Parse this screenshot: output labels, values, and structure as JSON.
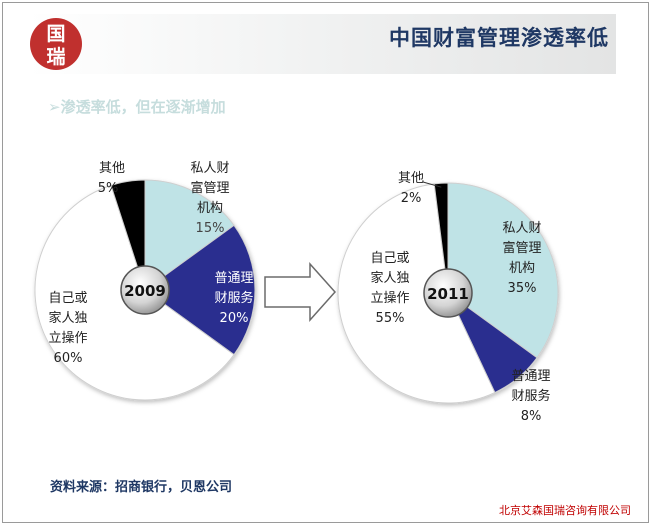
{
  "header": {
    "title": "中国财富管理渗透率低",
    "logo_text": "国瑞"
  },
  "bullet": {
    "marker": "➢",
    "text": "渗透率低，但在逐渐增加"
  },
  "chart_data": [
    {
      "type": "pie",
      "year": "2009",
      "slices": [
        {
          "label_lines": [
            "私人财",
            "富管理",
            "机构"
          ],
          "pct_label": "15%",
          "value": 15,
          "color": "#bfe3e6"
        },
        {
          "label_lines": [
            "普通理",
            "财服务"
          ],
          "pct_label": "20%",
          "value": 20,
          "color": "#2a2f8f"
        },
        {
          "label_lines": [
            "自己或",
            "家人独",
            "立操作"
          ],
          "pct_label": "60%",
          "value": 60,
          "color": "#ffffff"
        },
        {
          "label_lines": [
            "其他"
          ],
          "pct_label": "5%",
          "value": 5,
          "color": "#000000"
        }
      ]
    },
    {
      "type": "pie",
      "year": "2011",
      "slices": [
        {
          "label_lines": [
            "私人财",
            "富管理",
            "机构"
          ],
          "pct_label": "35%",
          "value": 35,
          "color": "#bfe3e6"
        },
        {
          "label_lines": [
            "普通理",
            "财服务"
          ],
          "pct_label": "8%",
          "value": 8,
          "color": "#2a2f8f"
        },
        {
          "label_lines": [
            "自己或",
            "家人独",
            "立操作"
          ],
          "pct_label": "55%",
          "value": 55,
          "color": "#ffffff"
        },
        {
          "label_lines": [
            "其他"
          ],
          "pct_label": "2%",
          "value": 2,
          "color": "#000000"
        }
      ]
    }
  ],
  "footer": {
    "source": "资料来源：招商银行，贝恩公司",
    "company": "北京艾森国瑞咨询有限公司"
  }
}
